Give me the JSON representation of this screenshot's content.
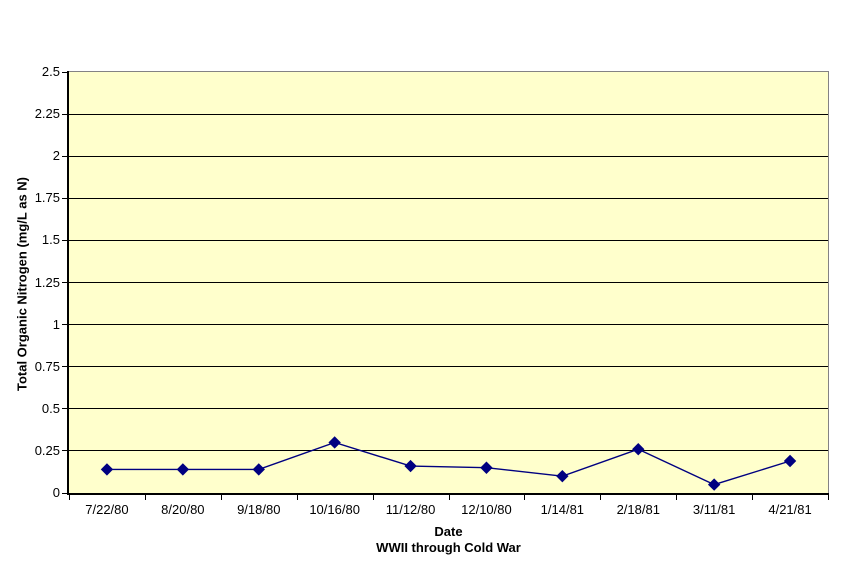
{
  "chart_data": {
    "type": "line",
    "title": "",
    "categories": [
      "7/22/80",
      "8/20/80",
      "9/18/80",
      "10/16/80",
      "11/12/80",
      "12/10/80",
      "1/14/81",
      "2/18/81",
      "3/11/81",
      "4/21/81"
    ],
    "series": [
      {
        "name": "Total Organic Nitrogen",
        "values": [
          0.14,
          0.14,
          0.14,
          0.3,
          0.16,
          0.15,
          0.1,
          0.26,
          0.05,
          0.19
        ],
        "marker": "diamond"
      }
    ],
    "xlabel": "Date",
    "xlabel_sub": "WWII through Cold War",
    "ylabel": "Total Organic Nitrogen (mg/L as N)",
    "ylim": [
      0,
      2.5
    ],
    "ytick_step": 0.25,
    "yticks": [
      0,
      0.25,
      0.5,
      0.75,
      1,
      1.25,
      1.5,
      1.75,
      2,
      2.25,
      2.5
    ],
    "ytick_labels": [
      "0",
      "0.25",
      "0.5",
      "0.75",
      "1",
      "1.25",
      "1.5",
      "1.75",
      "2",
      "2.25",
      "2.5"
    ],
    "grid": "horizontal-major",
    "legend": "none",
    "colors": {
      "page_bg": "#FFFFFF",
      "plot_bg": "#FFFFCC",
      "series": "#000080",
      "gridline": "#000000",
      "plot_border": "#848284",
      "axis": "#000000",
      "text": "#000000"
    }
  }
}
